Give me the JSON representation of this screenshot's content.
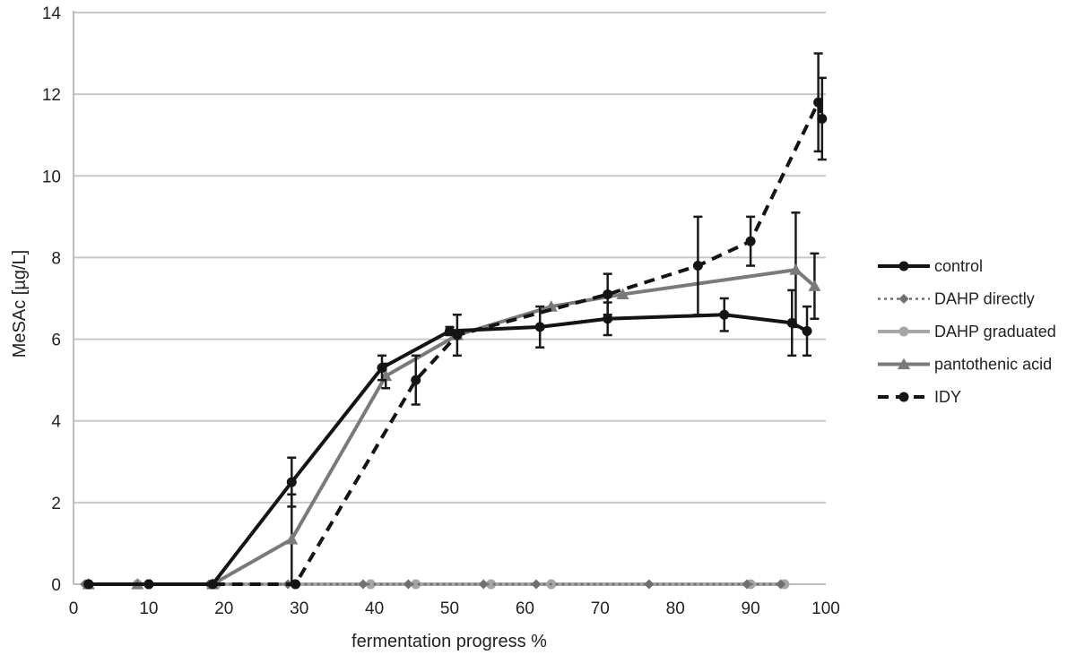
{
  "chart_data": {
    "type": "line",
    "title": "",
    "xlabel": "fermentation  progress %",
    "ylabel": "MeSAc [µg/L]",
    "xlim": [
      0,
      100
    ],
    "ylim": [
      0,
      14
    ],
    "xticks": [
      0,
      10,
      20,
      30,
      40,
      50,
      60,
      70,
      80,
      90,
      100
    ],
    "yticks": [
      0,
      2,
      4,
      6,
      8,
      10,
      12,
      14
    ],
    "grid": "horizontal",
    "legend_position": "right",
    "series": [
      {
        "name": "control",
        "color": "#141414",
        "style": "solid",
        "marker": "circle",
        "points": [
          {
            "x": 2,
            "y": 0
          },
          {
            "x": 10,
            "y": 0
          },
          {
            "x": 18.5,
            "y": 0
          },
          {
            "x": 29,
            "y": 2.5,
            "err": 0.6
          },
          {
            "x": 41,
            "y": 5.3,
            "err": 0.3
          },
          {
            "x": 50,
            "y": 6.2,
            "err": 0.1
          },
          {
            "x": 62,
            "y": 6.3,
            "err": 0.5
          },
          {
            "x": 71,
            "y": 6.5,
            "err": 0.4
          },
          {
            "x": 86.5,
            "y": 6.6,
            "err": 0.4
          },
          {
            "x": 95.5,
            "y": 6.4,
            "err": 0.8
          },
          {
            "x": 97.5,
            "y": 6.2,
            "err": 0.6
          }
        ]
      },
      {
        "name": "DAHP directly",
        "color": "#707070",
        "style": "dotted",
        "marker": "diamond",
        "points": [
          {
            "x": 1.5,
            "y": 0
          },
          {
            "x": 18,
            "y": 0
          },
          {
            "x": 28.5,
            "y": 0
          },
          {
            "x": 38.5,
            "y": 0
          },
          {
            "x": 44.5,
            "y": 0
          },
          {
            "x": 54.5,
            "y": 0
          },
          {
            "x": 61.5,
            "y": 0
          },
          {
            "x": 76.5,
            "y": 0
          },
          {
            "x": 89.5,
            "y": 0
          },
          {
            "x": 94,
            "y": 0
          }
        ]
      },
      {
        "name": "DAHP graduated",
        "color": "#a6a6a6",
        "style": "solid",
        "marker": "circle",
        "points": [
          {
            "x": 2,
            "y": 0
          },
          {
            "x": 8.5,
            "y": 0
          },
          {
            "x": 19,
            "y": 0
          },
          {
            "x": 29.5,
            "y": 0
          },
          {
            "x": 39.5,
            "y": 0
          },
          {
            "x": 45.5,
            "y": 0
          },
          {
            "x": 55.5,
            "y": 0
          },
          {
            "x": 63.5,
            "y": 0
          },
          {
            "x": 90,
            "y": 0
          },
          {
            "x": 94.5,
            "y": 0
          }
        ]
      },
      {
        "name": "pantothenic acid",
        "color": "#7a7a7a",
        "style": "solid",
        "marker": "triangle",
        "points": [
          {
            "x": 2,
            "y": 0
          },
          {
            "x": 8.5,
            "y": 0
          },
          {
            "x": 18.5,
            "y": 0
          },
          {
            "x": 29,
            "y": 1.1,
            "err": 1.1
          },
          {
            "x": 41.5,
            "y": 5.1,
            "err": 0.3
          },
          {
            "x": 51,
            "y": 6.1
          },
          {
            "x": 63.5,
            "y": 6.8
          },
          {
            "x": 73,
            "y": 7.1
          },
          {
            "x": 96,
            "y": 7.7,
            "err": 1.4
          },
          {
            "x": 98.5,
            "y": 7.3,
            "err": 0.8
          }
        ]
      },
      {
        "name": "IDY",
        "color": "#141414",
        "style": "dashed",
        "marker": "circle",
        "points": [
          {
            "x": 2,
            "y": 0
          },
          {
            "x": 10,
            "y": 0
          },
          {
            "x": 29.5,
            "y": 0
          },
          {
            "x": 45.5,
            "y": 5.0,
            "err": 0.6
          },
          {
            "x": 51,
            "y": 6.1,
            "err": 0.5
          },
          {
            "x": 71,
            "y": 7.1,
            "err": 0.5
          },
          {
            "x": 83,
            "y": 7.8,
            "err": 1.2
          },
          {
            "x": 90,
            "y": 8.4,
            "err": 0.6
          },
          {
            "x": 99,
            "y": 11.8,
            "err": 1.2
          },
          {
            "x": 99.5,
            "y": 11.4,
            "err": 1.0
          }
        ]
      }
    ]
  }
}
